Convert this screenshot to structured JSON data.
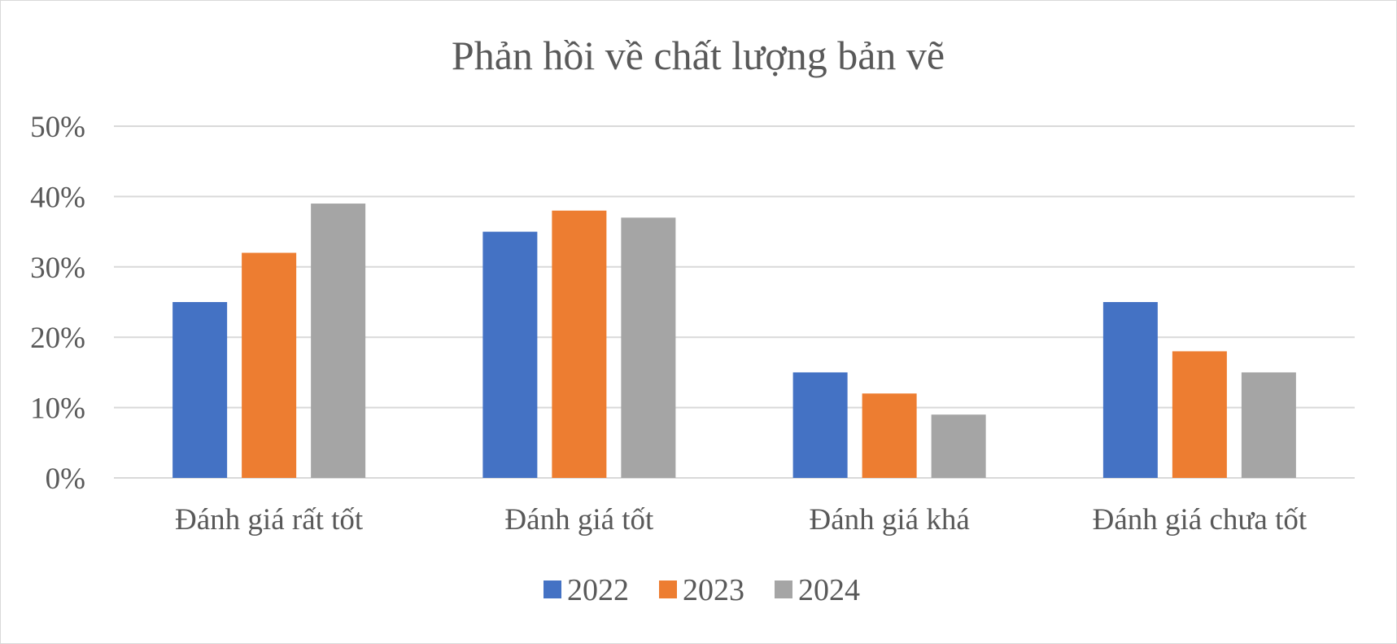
{
  "chart_data": {
    "type": "bar",
    "title": "Phản hồi về chất lượng bản vẽ",
    "xlabel": "",
    "ylabel": "",
    "categories": [
      "Đánh giá rất tốt",
      "Đánh giá tốt",
      "Đánh giá khá",
      "Đánh giá chưa tốt"
    ],
    "series": [
      {
        "name": "2022",
        "color": "#4472C4",
        "values": [
          25,
          35,
          15,
          25
        ]
      },
      {
        "name": "2023",
        "color": "#ED7D31",
        "values": [
          32,
          38,
          12,
          18
        ]
      },
      {
        "name": "2024",
        "color": "#A5A5A5",
        "values": [
          39,
          37,
          9,
          15
        ]
      }
    ],
    "ylim": [
      0,
      50
    ],
    "yticks": [
      0,
      10,
      20,
      30,
      40,
      50
    ],
    "ytick_labels": [
      "0%",
      "10%",
      "20%",
      "30%",
      "40%",
      "50%"
    ],
    "grid": true,
    "legend_position": "bottom"
  }
}
